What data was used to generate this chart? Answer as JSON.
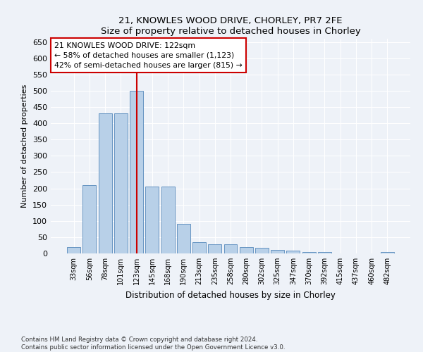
{
  "title1": "21, KNOWLES WOOD DRIVE, CHORLEY, PR7 2FE",
  "title2": "Size of property relative to detached houses in Chorley",
  "xlabel": "Distribution of detached houses by size in Chorley",
  "ylabel": "Number of detached properties",
  "categories": [
    "33sqm",
    "56sqm",
    "78sqm",
    "101sqm",
    "123sqm",
    "145sqm",
    "168sqm",
    "190sqm",
    "213sqm",
    "235sqm",
    "258sqm",
    "280sqm",
    "302sqm",
    "325sqm",
    "347sqm",
    "370sqm",
    "392sqm",
    "415sqm",
    "437sqm",
    "460sqm",
    "482sqm"
  ],
  "values": [
    20,
    210,
    430,
    430,
    500,
    205,
    205,
    90,
    35,
    28,
    28,
    20,
    18,
    10,
    8,
    5,
    5,
    0,
    0,
    0,
    4
  ],
  "bar_color": "#b8d0e8",
  "bar_edge_color": "#5588bb",
  "highlight_index": 4,
  "highlight_color": "#cc0000",
  "annotation_line1": "21 KNOWLES WOOD DRIVE: 122sqm",
  "annotation_line2": "← 58% of detached houses are smaller (1,123)",
  "annotation_line3": "42% of semi-detached houses are larger (815) →",
  "annotation_box_color": "white",
  "annotation_box_edge": "#cc0000",
  "ylim": [
    0,
    660
  ],
  "yticks": [
    0,
    50,
    100,
    150,
    200,
    250,
    300,
    350,
    400,
    450,
    500,
    550,
    600,
    650
  ],
  "footer1": "Contains HM Land Registry data © Crown copyright and database right 2024.",
  "footer2": "Contains public sector information licensed under the Open Government Licence v3.0.",
  "bg_color": "#eef2f8",
  "plot_bg_color": "#eef2f8"
}
